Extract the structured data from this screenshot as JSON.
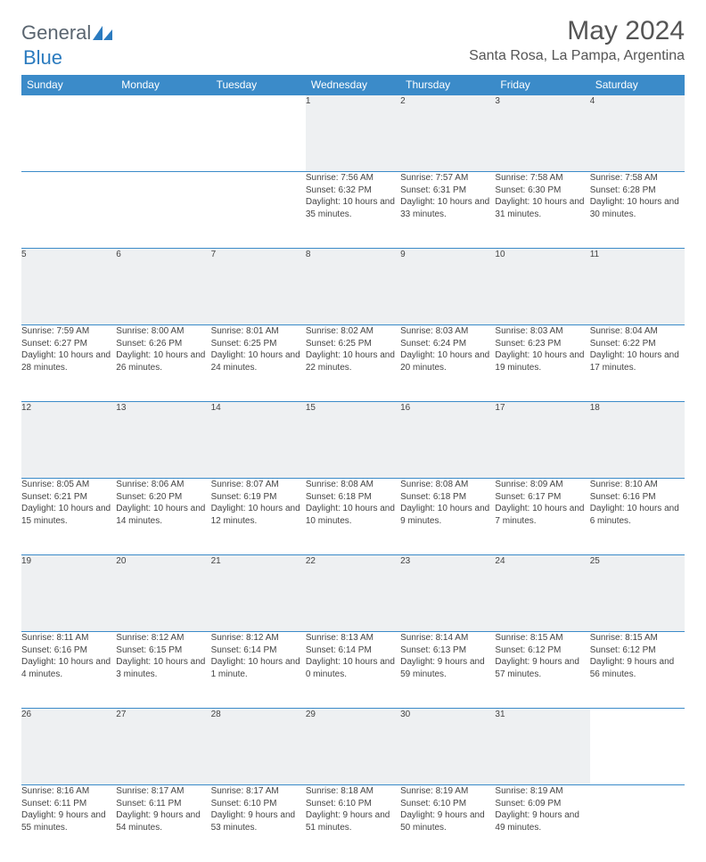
{
  "logo": {
    "part1": "General",
    "part2": "Blue"
  },
  "title": "May 2024",
  "location": "Santa Rosa, La Pampa, Argentina",
  "colors": {
    "header_bg": "#3b8bc9",
    "header_text": "#ffffff",
    "daynum_bg": "#eef0f2",
    "border": "#3b8bc9",
    "text": "#444444",
    "title_text": "#555555",
    "logo_gray": "#5a6570",
    "logo_blue": "#2b7bbf"
  },
  "weekdays": [
    "Sunday",
    "Monday",
    "Tuesday",
    "Wednesday",
    "Thursday",
    "Friday",
    "Saturday"
  ],
  "weeks": [
    [
      null,
      null,
      null,
      {
        "n": "1",
        "sr": "7:56 AM",
        "ss": "6:32 PM",
        "dl": "10 hours and 35 minutes."
      },
      {
        "n": "2",
        "sr": "7:57 AM",
        "ss": "6:31 PM",
        "dl": "10 hours and 33 minutes."
      },
      {
        "n": "3",
        "sr": "7:58 AM",
        "ss": "6:30 PM",
        "dl": "10 hours and 31 minutes."
      },
      {
        "n": "4",
        "sr": "7:58 AM",
        "ss": "6:28 PM",
        "dl": "10 hours and 30 minutes."
      }
    ],
    [
      {
        "n": "5",
        "sr": "7:59 AM",
        "ss": "6:27 PM",
        "dl": "10 hours and 28 minutes."
      },
      {
        "n": "6",
        "sr": "8:00 AM",
        "ss": "6:26 PM",
        "dl": "10 hours and 26 minutes."
      },
      {
        "n": "7",
        "sr": "8:01 AM",
        "ss": "6:25 PM",
        "dl": "10 hours and 24 minutes."
      },
      {
        "n": "8",
        "sr": "8:02 AM",
        "ss": "6:25 PM",
        "dl": "10 hours and 22 minutes."
      },
      {
        "n": "9",
        "sr": "8:03 AM",
        "ss": "6:24 PM",
        "dl": "10 hours and 20 minutes."
      },
      {
        "n": "10",
        "sr": "8:03 AM",
        "ss": "6:23 PM",
        "dl": "10 hours and 19 minutes."
      },
      {
        "n": "11",
        "sr": "8:04 AM",
        "ss": "6:22 PM",
        "dl": "10 hours and 17 minutes."
      }
    ],
    [
      {
        "n": "12",
        "sr": "8:05 AM",
        "ss": "6:21 PM",
        "dl": "10 hours and 15 minutes."
      },
      {
        "n": "13",
        "sr": "8:06 AM",
        "ss": "6:20 PM",
        "dl": "10 hours and 14 minutes."
      },
      {
        "n": "14",
        "sr": "8:07 AM",
        "ss": "6:19 PM",
        "dl": "10 hours and 12 minutes."
      },
      {
        "n": "15",
        "sr": "8:08 AM",
        "ss": "6:18 PM",
        "dl": "10 hours and 10 minutes."
      },
      {
        "n": "16",
        "sr": "8:08 AM",
        "ss": "6:18 PM",
        "dl": "10 hours and 9 minutes."
      },
      {
        "n": "17",
        "sr": "8:09 AM",
        "ss": "6:17 PM",
        "dl": "10 hours and 7 minutes."
      },
      {
        "n": "18",
        "sr": "8:10 AM",
        "ss": "6:16 PM",
        "dl": "10 hours and 6 minutes."
      }
    ],
    [
      {
        "n": "19",
        "sr": "8:11 AM",
        "ss": "6:16 PM",
        "dl": "10 hours and 4 minutes."
      },
      {
        "n": "20",
        "sr": "8:12 AM",
        "ss": "6:15 PM",
        "dl": "10 hours and 3 minutes."
      },
      {
        "n": "21",
        "sr": "8:12 AM",
        "ss": "6:14 PM",
        "dl": "10 hours and 1 minute."
      },
      {
        "n": "22",
        "sr": "8:13 AM",
        "ss": "6:14 PM",
        "dl": "10 hours and 0 minutes."
      },
      {
        "n": "23",
        "sr": "8:14 AM",
        "ss": "6:13 PM",
        "dl": "9 hours and 59 minutes."
      },
      {
        "n": "24",
        "sr": "8:15 AM",
        "ss": "6:12 PM",
        "dl": "9 hours and 57 minutes."
      },
      {
        "n": "25",
        "sr": "8:15 AM",
        "ss": "6:12 PM",
        "dl": "9 hours and 56 minutes."
      }
    ],
    [
      {
        "n": "26",
        "sr": "8:16 AM",
        "ss": "6:11 PM",
        "dl": "9 hours and 55 minutes."
      },
      {
        "n": "27",
        "sr": "8:17 AM",
        "ss": "6:11 PM",
        "dl": "9 hours and 54 minutes."
      },
      {
        "n": "28",
        "sr": "8:17 AM",
        "ss": "6:10 PM",
        "dl": "9 hours and 53 minutes."
      },
      {
        "n": "29",
        "sr": "8:18 AM",
        "ss": "6:10 PM",
        "dl": "9 hours and 51 minutes."
      },
      {
        "n": "30",
        "sr": "8:19 AM",
        "ss": "6:10 PM",
        "dl": "9 hours and 50 minutes."
      },
      {
        "n": "31",
        "sr": "8:19 AM",
        "ss": "6:09 PM",
        "dl": "9 hours and 49 minutes."
      },
      null
    ]
  ],
  "labels": {
    "sunrise": "Sunrise:",
    "sunset": "Sunset:",
    "daylight": "Daylight:"
  }
}
